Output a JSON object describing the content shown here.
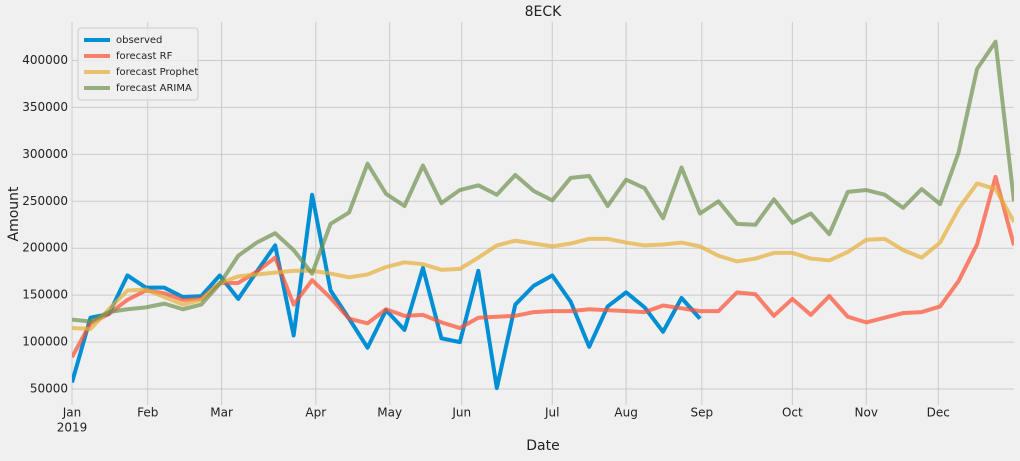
{
  "chart_data": {
    "type": "line",
    "title": "8ECK",
    "xlabel": "Date",
    "ylabel": "Amount",
    "xlim": [
      0,
      51
    ],
    "xticks": [
      {
        "value": 0,
        "label": "Jan"
      },
      {
        "value": 4.1,
        "label": "Feb"
      },
      {
        "value": 8.1,
        "label": "Mar"
      },
      {
        "value": 13.2,
        "label": "Apr"
      },
      {
        "value": 17.2,
        "label": "May"
      },
      {
        "value": 21.1,
        "label": "Jun"
      },
      {
        "value": 26.0,
        "label": "Jul"
      },
      {
        "value": 30.0,
        "label": "Aug"
      },
      {
        "value": 34.1,
        "label": "Sep"
      },
      {
        "value": 39.0,
        "label": "Oct"
      },
      {
        "value": 43.0,
        "label": "Nov"
      },
      {
        "value": 46.9,
        "label": "Dec"
      }
    ],
    "xtick_year": "2019",
    "ylim": [
      33000,
      441000
    ],
    "yticks": [
      50000,
      100000,
      150000,
      200000,
      250000,
      300000,
      350000,
      400000
    ],
    "grid": true,
    "legend": "upper left",
    "series": [
      {
        "name": "observed",
        "color": "#008fd5",
        "alpha": 1,
        "values": [
          57000,
          126000,
          130000,
          171000,
          158000,
          158000,
          148000,
          149000,
          171000,
          146000,
          175000,
          203000,
          107000,
          257000,
          155000,
          125000,
          94000,
          134000,
          113000,
          179000,
          104000,
          100000,
          176000,
          51000,
          140000,
          160000,
          171000,
          143000,
          95000,
          138000,
          153000,
          137000,
          111000,
          147000,
          125000,
          null,
          null,
          null,
          null,
          null,
          null,
          null,
          null,
          null,
          null,
          null,
          null,
          null,
          null,
          null,
          null,
          null
        ]
      },
      {
        "name": "forecast RF",
        "color": "#fc4f30",
        "alpha": 0.7,
        "values": [
          84000,
          120000,
          130000,
          145000,
          155000,
          152000,
          145000,
          146000,
          163000,
          163000,
          175000,
          190000,
          140000,
          166000,
          147000,
          125000,
          120000,
          135000,
          128000,
          129000,
          121000,
          115000,
          126000,
          127000,
          128000,
          132000,
          133000,
          133000,
          135000,
          134000,
          133000,
          132000,
          139000,
          136000,
          133000,
          133000,
          153000,
          151000,
          128000,
          146000,
          129000,
          149000,
          127000,
          121000,
          126000,
          131000,
          132000,
          138000,
          165000,
          204000,
          276000,
          203000
        ]
      },
      {
        "name": "forecast Prophet",
        "color": "#e5ae38",
        "alpha": 0.7,
        "values": [
          115000,
          114000,
          135000,
          155000,
          156000,
          148000,
          140000,
          145000,
          163000,
          170000,
          172000,
          174000,
          176000,
          176000,
          173000,
          169000,
          172000,
          180000,
          185000,
          183000,
          177000,
          178000,
          190000,
          203000,
          208000,
          205000,
          202000,
          205000,
          210000,
          210000,
          206000,
          203000,
          204000,
          206000,
          202000,
          192000,
          186000,
          189000,
          195000,
          195000,
          189000,
          187000,
          196000,
          209000,
          210000,
          198000,
          190000,
          206000,
          242000,
          269000,
          263000,
          228000
        ]
      },
      {
        "name": "forecast ARIMA",
        "color": "#6d904f",
        "alpha": 0.7,
        "values": [
          124000,
          122000,
          132000,
          135000,
          137000,
          141000,
          135000,
          140000,
          162000,
          192000,
          206000,
          216000,
          198000,
          173000,
          226000,
          238000,
          290000,
          258000,
          245000,
          288000,
          248000,
          262000,
          267000,
          257000,
          278000,
          261000,
          251000,
          275000,
          277000,
          245000,
          273000,
          264000,
          232000,
          286000,
          237000,
          250000,
          226000,
          225000,
          252000,
          227000,
          237000,
          215000,
          260000,
          262000,
          257000,
          243000,
          263000,
          247000,
          302000,
          391000,
          420000,
          250000
        ]
      }
    ]
  }
}
